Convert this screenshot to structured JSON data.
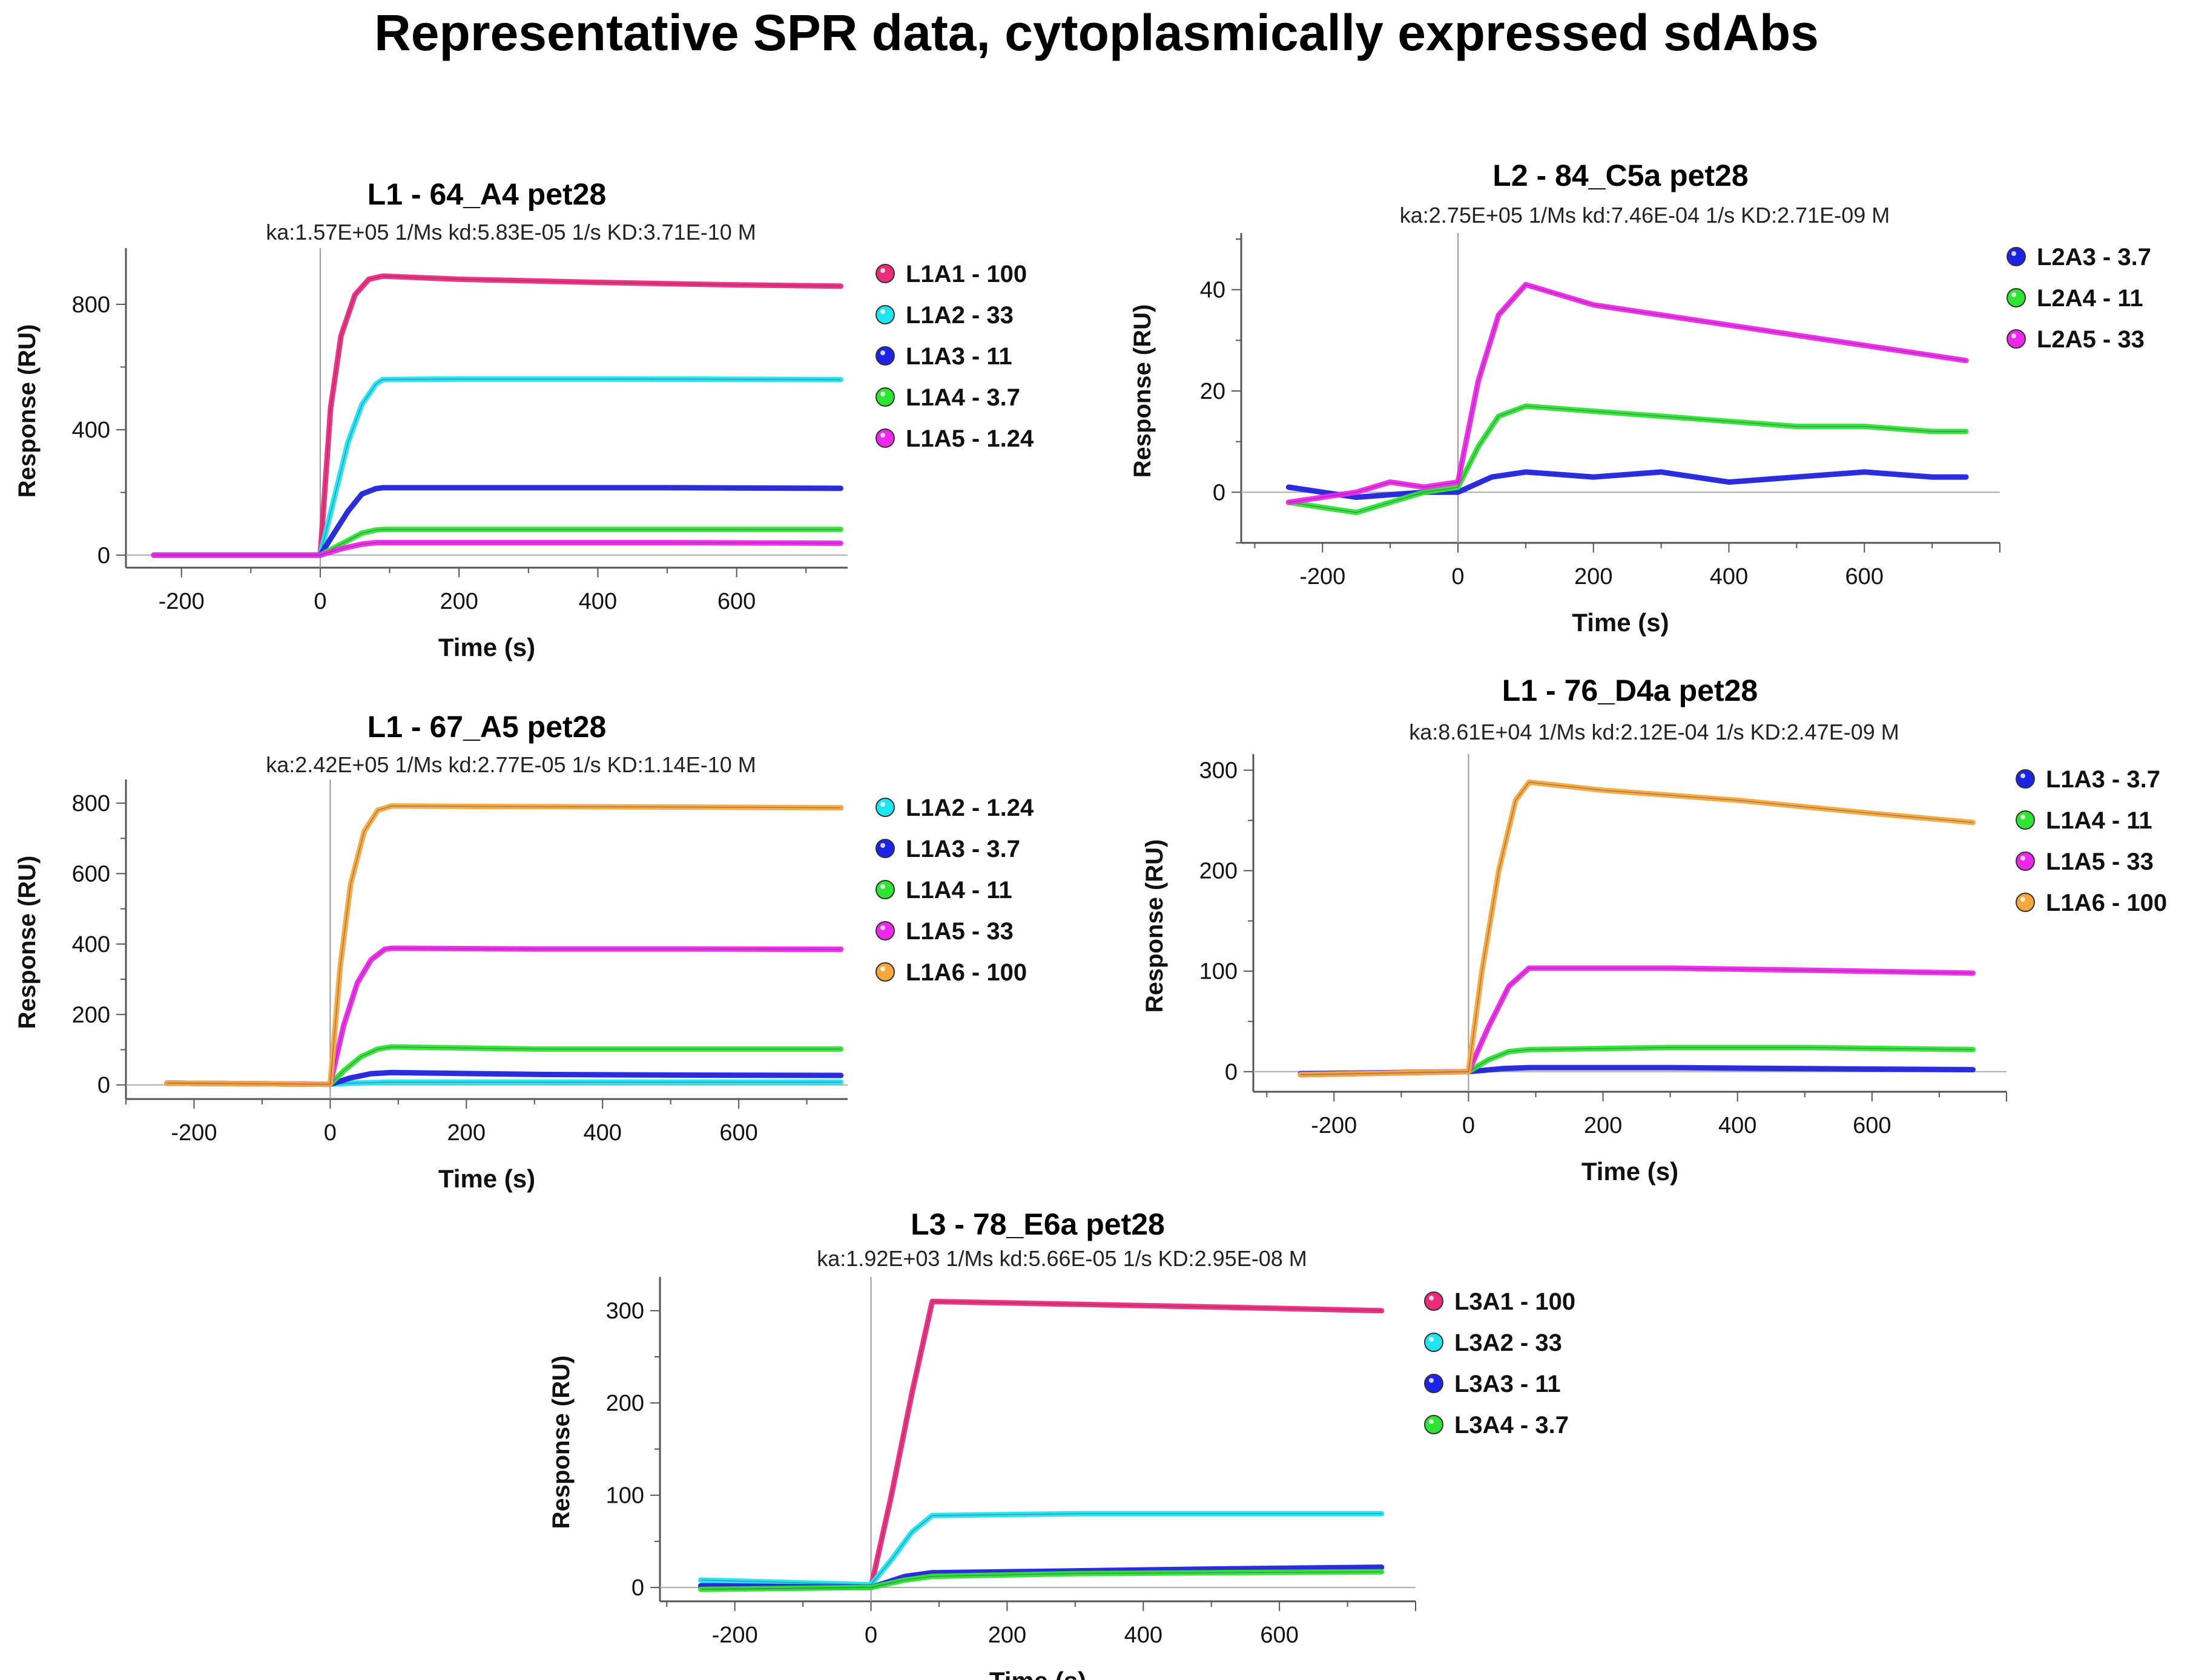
{
  "figure": {
    "title": "Representative SPR data, cytoplasmically expressed sdAbs"
  },
  "colors": {
    "red": "#ee2a7b",
    "cyan": "#1ee6f0",
    "blue": "#1c23e6",
    "green": "#2ee632",
    "magenta": "#ef27ea",
    "orange": "#f6a93a"
  },
  "chart_data": [
    {
      "type": "line",
      "title": "L1 - 64_A4 pet28",
      "subtitle": "ka:1.57E+05 1/Ms  kd:5.83E-05 1/s  KD:3.71E-10 M",
      "xlabel": "Time (s)",
      "ylabel": "Response (RU)",
      "xlim": [
        -280,
        760
      ],
      "ylim": [
        -40,
        960
      ],
      "xticks": [
        -200,
        0,
        200,
        400,
        600
      ],
      "yticks": [
        0,
        400,
        800
      ],
      "injection_end_s": 90,
      "series": [
        {
          "name": "L1A1 - 100",
          "color": "#ee2a7b",
          "points": [
            [
              -240,
              0
            ],
            [
              0,
              0
            ],
            [
              15,
              470
            ],
            [
              30,
              700
            ],
            [
              50,
              830
            ],
            [
              70,
              880
            ],
            [
              90,
              890
            ],
            [
              200,
              880
            ],
            [
              400,
              870
            ],
            [
              600,
              862
            ],
            [
              750,
              858
            ]
          ]
        },
        {
          "name": "L1A2 - 33",
          "color": "#1ee6f0",
          "points": [
            [
              -240,
              0
            ],
            [
              0,
              0
            ],
            [
              20,
              180
            ],
            [
              40,
              360
            ],
            [
              60,
              480
            ],
            [
              80,
              545
            ],
            [
              90,
              560
            ],
            [
              200,
              562
            ],
            [
              400,
              562
            ],
            [
              600,
              561
            ],
            [
              750,
              560
            ]
          ]
        },
        {
          "name": "L1A3 - 11",
          "color": "#1c23e6",
          "points": [
            [
              -240,
              0
            ],
            [
              0,
              0
            ],
            [
              20,
              70
            ],
            [
              40,
              140
            ],
            [
              60,
              195
            ],
            [
              80,
              212
            ],
            [
              90,
              215
            ],
            [
              300,
              215
            ],
            [
              500,
              215
            ],
            [
              750,
              213
            ]
          ]
        },
        {
          "name": "L1A4 - 3.7",
          "color": "#2ee632",
          "points": [
            [
              -240,
              0
            ],
            [
              0,
              0
            ],
            [
              30,
              35
            ],
            [
              60,
              70
            ],
            [
              80,
              80
            ],
            [
              90,
              82
            ],
            [
              300,
              82
            ],
            [
              500,
              82
            ],
            [
              750,
              82
            ]
          ]
        },
        {
          "name": "L1A5 - 1.24",
          "color": "#ef27ea",
          "points": [
            [
              -240,
              0
            ],
            [
              0,
              0
            ],
            [
              30,
              20
            ],
            [
              60,
              35
            ],
            [
              80,
              40
            ],
            [
              90,
              40
            ],
            [
              300,
              40
            ],
            [
              500,
              40
            ],
            [
              750,
              38
            ]
          ]
        }
      ]
    },
    {
      "type": "line",
      "title": "L2 - 84_C5a pet28",
      "subtitle": "ka:2.75E+05 1/Ms  kd:7.46E-04 1/s  KD:2.71E-09 M",
      "xlabel": "Time (s)",
      "ylabel": "Response (RU)",
      "xlim": [
        -320,
        800
      ],
      "ylim": [
        -10,
        50
      ],
      "xticks": [
        -200,
        0,
        200,
        400,
        600
      ],
      "yticks": [
        0,
        20,
        40
      ],
      "injection_end_s": 100,
      "series": [
        {
          "name": "L2A3 - 3.7",
          "color": "#1c23e6",
          "points": [
            [
              -250,
              1
            ],
            [
              -150,
              -1
            ],
            [
              -50,
              0
            ],
            [
              0,
              0
            ],
            [
              50,
              3
            ],
            [
              100,
              4
            ],
            [
              200,
              3
            ],
            [
              300,
              4
            ],
            [
              400,
              2
            ],
            [
              500,
              3
            ],
            [
              600,
              4
            ],
            [
              700,
              3
            ],
            [
              750,
              3
            ]
          ]
        },
        {
          "name": "L2A4 - 11",
          "color": "#2ee632",
          "points": [
            [
              -250,
              -2
            ],
            [
              -150,
              -4
            ],
            [
              -100,
              -2
            ],
            [
              -50,
              0
            ],
            [
              0,
              1
            ],
            [
              30,
              9
            ],
            [
              60,
              15
            ],
            [
              100,
              17
            ],
            [
              200,
              16
            ],
            [
              300,
              15
            ],
            [
              400,
              14
            ],
            [
              500,
              13
            ],
            [
              600,
              13
            ],
            [
              700,
              12
            ],
            [
              750,
              12
            ]
          ]
        },
        {
          "name": "L2A5 - 33",
          "color": "#ef27ea",
          "points": [
            [
              -250,
              -2
            ],
            [
              -150,
              0
            ],
            [
              -100,
              2
            ],
            [
              -50,
              1
            ],
            [
              0,
              2
            ],
            [
              30,
              22
            ],
            [
              60,
              35
            ],
            [
              100,
              41
            ],
            [
              150,
              39
            ],
            [
              200,
              37
            ],
            [
              300,
              35
            ],
            [
              400,
              33
            ],
            [
              500,
              31
            ],
            [
              600,
              29
            ],
            [
              700,
              27
            ],
            [
              750,
              26
            ]
          ]
        }
      ]
    },
    {
      "type": "line",
      "title": "L1 - 67_A5 pet28",
      "subtitle": "ka:2.42E+05 1/Ms  kd:2.77E-05 1/s  KD:1.14E-10 M",
      "xlabel": "Time (s)",
      "ylabel": "Response (RU)",
      "xlim": [
        -300,
        760
      ],
      "ylim": [
        -40,
        850
      ],
      "xticks": [
        -200,
        0,
        200,
        400,
        600
      ],
      "yticks": [
        0,
        200,
        400,
        600,
        800
      ],
      "injection_end_s": 90,
      "series": [
        {
          "name": "L1A2 - 1.24",
          "color": "#1ee6f0",
          "points": [
            [
              -240,
              5
            ],
            [
              0,
              2
            ],
            [
              30,
              5
            ],
            [
              90,
              8
            ],
            [
              300,
              8
            ],
            [
              500,
              8
            ],
            [
              750,
              8
            ]
          ]
        },
        {
          "name": "L1A3 - 3.7",
          "color": "#1c23e6",
          "points": [
            [
              -240,
              5
            ],
            [
              0,
              2
            ],
            [
              30,
              20
            ],
            [
              60,
              32
            ],
            [
              90,
              35
            ],
            [
              300,
              30
            ],
            [
              500,
              28
            ],
            [
              750,
              27
            ]
          ]
        },
        {
          "name": "L1A4 - 11",
          "color": "#2ee632",
          "points": [
            [
              -240,
              5
            ],
            [
              0,
              2
            ],
            [
              20,
              40
            ],
            [
              45,
              80
            ],
            [
              70,
              102
            ],
            [
              90,
              108
            ],
            [
              300,
              102
            ],
            [
              500,
              102
            ],
            [
              750,
              102
            ]
          ]
        },
        {
          "name": "L1A5 - 33",
          "color": "#ef27ea",
          "points": [
            [
              -240,
              5
            ],
            [
              0,
              2
            ],
            [
              20,
              170
            ],
            [
              40,
              290
            ],
            [
              60,
              355
            ],
            [
              80,
              385
            ],
            [
              90,
              388
            ],
            [
              300,
              386
            ],
            [
              500,
              386
            ],
            [
              750,
              385
            ]
          ]
        },
        {
          "name": "L1A6 - 100",
          "color": "#f6a93a",
          "points": [
            [
              -240,
              5
            ],
            [
              0,
              2
            ],
            [
              15,
              340
            ],
            [
              30,
              570
            ],
            [
              50,
              720
            ],
            [
              70,
              780
            ],
            [
              90,
              792
            ],
            [
              300,
              790
            ],
            [
              500,
              789
            ],
            [
              750,
              787
            ]
          ]
        }
      ]
    },
    {
      "type": "line",
      "title": "L1 - 76_D4a pet28",
      "subtitle": "ka:8.61E+04 1/Ms  kd:2.12E-04 1/s  KD:2.47E-09 M",
      "xlabel": "Time (s)",
      "ylabel": "Response (RU)",
      "xlim": [
        -320,
        800
      ],
      "ylim": [
        -20,
        310
      ],
      "xticks": [
        -200,
        0,
        200,
        400,
        600
      ],
      "yticks": [
        0,
        100,
        200,
        300
      ],
      "injection_end_s": 90,
      "series": [
        {
          "name": "L1A3 - 3.7",
          "color": "#1c23e6",
          "points": [
            [
              -250,
              -2
            ],
            [
              0,
              0
            ],
            [
              50,
              3
            ],
            [
              90,
              4
            ],
            [
              300,
              4
            ],
            [
              500,
              3
            ],
            [
              750,
              2
            ]
          ]
        },
        {
          "name": "L1A4 - 11",
          "color": "#2ee632",
          "points": [
            [
              -250,
              -3
            ],
            [
              0,
              0
            ],
            [
              30,
              12
            ],
            [
              60,
              20
            ],
            [
              90,
              22
            ],
            [
              300,
              24
            ],
            [
              500,
              24
            ],
            [
              750,
              22
            ]
          ]
        },
        {
          "name": "L1A5 - 33",
          "color": "#ef27ea",
          "points": [
            [
              -250,
              -3
            ],
            [
              0,
              0
            ],
            [
              30,
              45
            ],
            [
              60,
              85
            ],
            [
              90,
              103
            ],
            [
              300,
              103
            ],
            [
              500,
              101
            ],
            [
              750,
              98
            ]
          ]
        },
        {
          "name": "L1A6 - 100",
          "color": "#f6a93a",
          "points": [
            [
              -250,
              -3
            ],
            [
              0,
              0
            ],
            [
              20,
              100
            ],
            [
              45,
              200
            ],
            [
              70,
              270
            ],
            [
              90,
              288
            ],
            [
              200,
              280
            ],
            [
              400,
              270
            ],
            [
              600,
              257
            ],
            [
              750,
              248
            ]
          ]
        }
      ]
    },
    {
      "type": "line",
      "title": "L3 - 78_E6a pet28",
      "subtitle": "ka:1.92E+03 1/Ms  kd:5.66E-05 1/s  KD:2.95E-08 M",
      "xlabel": "Time (s)",
      "ylabel": "Response (RU)",
      "xlim": [
        -310,
        800
      ],
      "ylim": [
        -15,
        330
      ],
      "xticks": [
        -200,
        0,
        200,
        400,
        600
      ],
      "yticks": [
        0,
        100,
        200,
        300
      ],
      "injection_end_s": 90,
      "series": [
        {
          "name": "L3A1 - 100",
          "color": "#ee2a7b",
          "points": [
            [
              -250,
              0
            ],
            [
              0,
              0
            ],
            [
              30,
              100
            ],
            [
              60,
              210
            ],
            [
              90,
              310
            ],
            [
              300,
              307
            ],
            [
              500,
              304
            ],
            [
              750,
              300
            ]
          ]
        },
        {
          "name": "L3A2 - 33",
          "color": "#1ee6f0",
          "points": [
            [
              -250,
              8
            ],
            [
              0,
              3
            ],
            [
              30,
              30
            ],
            [
              60,
              60
            ],
            [
              90,
              78
            ],
            [
              300,
              80
            ],
            [
              500,
              80
            ],
            [
              750,
              80
            ]
          ]
        },
        {
          "name": "L3A3 - 11",
          "color": "#1c23e6",
          "points": [
            [
              -250,
              2
            ],
            [
              0,
              0
            ],
            [
              50,
              12
            ],
            [
              90,
              16
            ],
            [
              300,
              18
            ],
            [
              500,
              20
            ],
            [
              750,
              22
            ]
          ]
        },
        {
          "name": "L3A4 - 3.7",
          "color": "#2ee632",
          "points": [
            [
              -250,
              -2
            ],
            [
              0,
              0
            ],
            [
              50,
              8
            ],
            [
              90,
              12
            ],
            [
              300,
              15
            ],
            [
              500,
              16
            ],
            [
              750,
              17
            ]
          ]
        }
      ]
    }
  ]
}
